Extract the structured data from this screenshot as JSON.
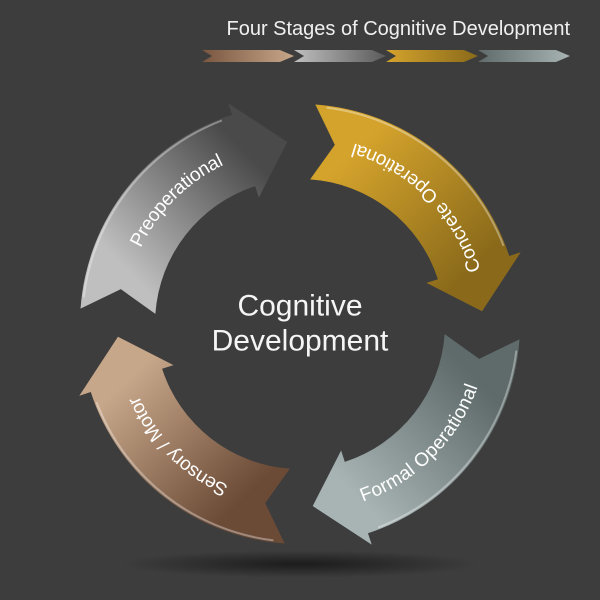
{
  "title": "Four Stages of Cognitive Development",
  "center": {
    "line1": "Cognitive",
    "line2": "Development"
  },
  "diagram": {
    "type": "circular-arrow-cycle",
    "background_color": "#3d3d3d",
    "text_color": "#f5f5f5",
    "title_fontsize": 20,
    "center_fontsize": 30,
    "segment_label_fontsize": 19,
    "outer_radius": 220,
    "inner_radius": 145,
    "segments": [
      {
        "label": "Sensory / Motor",
        "start_angle": 180,
        "end_angle": 270,
        "gradient_from": "#6b4a36",
        "gradient_to": "#c7a78a"
      },
      {
        "label": "Preoperational",
        "start_angle": 270,
        "end_angle": 360,
        "gradient_from": "#bfbfbf",
        "gradient_to": "#4a4a4a"
      },
      {
        "label": "Concrete Operational",
        "start_angle": 0,
        "end_angle": 90,
        "gradient_from": "#d4a32c",
        "gradient_to": "#8a6a1a"
      },
      {
        "label": "Formal Operational",
        "start_angle": 90,
        "end_angle": 180,
        "gradient_from": "#5f6b6b",
        "gradient_to": "#a8b4b4"
      }
    ],
    "legend_colors": [
      {
        "from": "#7a5640",
        "to": "#c7a78a"
      },
      {
        "from": "#bfbfbf",
        "to": "#5a5a5a"
      },
      {
        "from": "#d4a32c",
        "to": "#8a6a1a"
      },
      {
        "from": "#5f6b6b",
        "to": "#a8b4b4"
      }
    ]
  }
}
